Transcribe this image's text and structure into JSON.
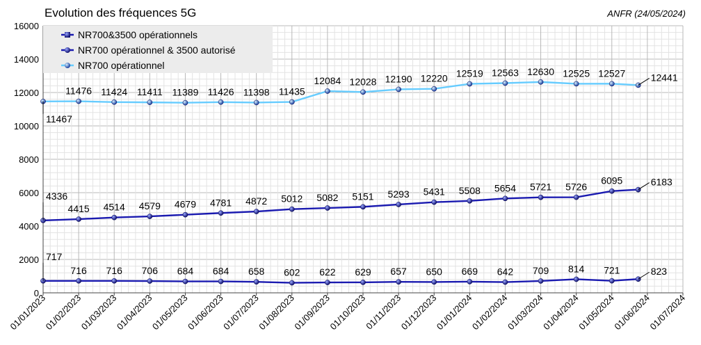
{
  "chart_data": {
    "type": "line",
    "title": "Evolution des fréquences 5G",
    "source": "ANFR (24/05/2024)",
    "ylim": [
      0,
      16000
    ],
    "yticks": [
      0,
      2000,
      4000,
      6000,
      8000,
      10000,
      12000,
      14000,
      16000
    ],
    "grid": true,
    "legend_position": "top-left",
    "x_tick_labels": [
      "01/01/2023",
      "01/02/2023",
      "01/03/2023",
      "01/04/2023",
      "01/05/2023",
      "01/06/2023",
      "01/07/2023",
      "01/08/2023",
      "01/09/2023",
      "01/10/2023",
      "01/11/2023",
      "01/12/2023",
      "01/01/2024",
      "01/02/2024",
      "01/03/2024",
      "01/04/2024",
      "01/05/2024",
      "01/06/2024",
      "01/07/2024"
    ],
    "x": [
      "01/01/2023",
      "01/02/2023",
      "01/03/2023",
      "01/04/2023",
      "01/05/2023",
      "01/06/2023",
      "01/07/2023",
      "01/08/2023",
      "01/09/2023",
      "01/10/2023",
      "01/11/2023",
      "01/12/2023",
      "01/01/2024",
      "01/02/2024",
      "01/03/2024",
      "01/04/2024",
      "01/05/2024",
      "24/05/2024"
    ],
    "series": [
      {
        "name": "NR700&3500 opérationnels",
        "color": "#1a1ab0",
        "values": [
          717,
          716,
          716,
          706,
          684,
          684,
          658,
          602,
          622,
          629,
          657,
          650,
          669,
          642,
          709,
          814,
          721,
          823
        ]
      },
      {
        "name": "NR700 opérationnel & 3500 autorisé",
        "color": "#1a1ab0",
        "values": [
          4336,
          4415,
          4514,
          4579,
          4679,
          4781,
          4872,
          5012,
          5082,
          5151,
          5293,
          5431,
          5508,
          5654,
          5721,
          5726,
          6095,
          6183
        ]
      },
      {
        "name": "NR700 opérationnel",
        "color": "#66ccff",
        "values": [
          11467,
          11476,
          11424,
          11411,
          11389,
          11426,
          11398,
          11435,
          12084,
          12028,
          12190,
          12220,
          12519,
          12563,
          12630,
          12525,
          12527,
          12441
        ]
      }
    ]
  }
}
